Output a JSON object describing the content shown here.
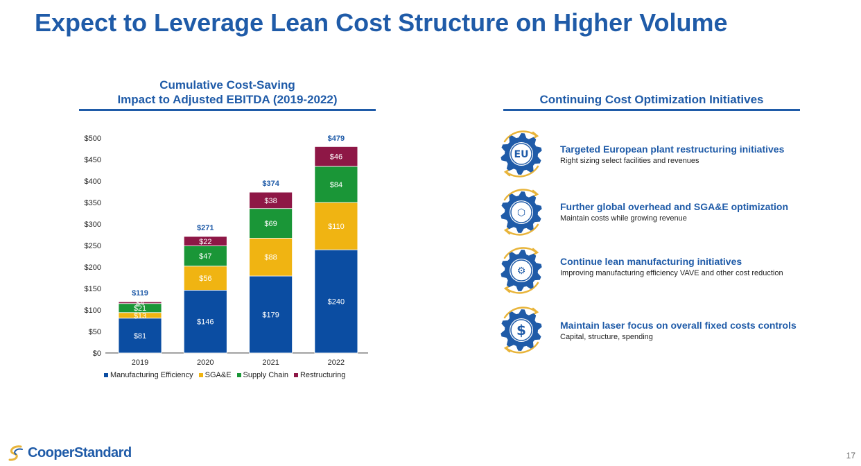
{
  "title": "Expect to Leverage Lean Cost Structure on Higher Volume",
  "colors": {
    "brand_blue": "#1F5BA8",
    "manufacturing": "#0B4DA2",
    "sgae": "#F0B412",
    "supply_chain": "#1A9637",
    "restructuring": "#8E1746",
    "gold_arrow": "#E8B43A"
  },
  "chart_data": {
    "type": "bar",
    "stacked": true,
    "title": "Cumulative Cost-Saving Impact to Adjusted EBITDA (2019-2022)",
    "title_lines": [
      "Cumulative Cost-Saving",
      "Impact to Adjusted EBITDA (2019-2022)"
    ],
    "categories": [
      "2019",
      "2020",
      "2021",
      "2022"
    ],
    "series": [
      {
        "name": "Manufacturing Efficiency",
        "values": [
          81,
          146,
          179,
          240
        ],
        "labels": [
          "$81",
          "$146",
          "$179",
          "$240"
        ]
      },
      {
        "name": "SGA&E",
        "values": [
          13,
          56,
          88,
          110
        ],
        "labels": [
          "$13",
          "$56",
          "$88",
          "$110"
        ]
      },
      {
        "name": "Supply Chain",
        "values": [
          21,
          47,
          69,
          84
        ],
        "labels": [
          "$21",
          "$47",
          "$69",
          "$84"
        ]
      },
      {
        "name": "Restructuring",
        "values": [
          4,
          22,
          38,
          46
        ],
        "labels": [
          "$4",
          "$22",
          "$38",
          "$46"
        ]
      }
    ],
    "totals": [
      119,
      271,
      374,
      479
    ],
    "total_labels": [
      "$119",
      "$271",
      "$374",
      "$479"
    ],
    "yticks": [
      0,
      50,
      100,
      150,
      200,
      250,
      300,
      350,
      400,
      450,
      500
    ],
    "ytick_labels": [
      "$0",
      "$50",
      "$100",
      "$150",
      "$200",
      "$250",
      "$300",
      "$350",
      "$400",
      "$450",
      "$500"
    ],
    "ylim": [
      0,
      500
    ],
    "xlabel": "",
    "ylabel": "",
    "grid": false,
    "legend": "bottom"
  },
  "initiatives": {
    "header": "Continuing Cost Optimization Initiatives",
    "items": [
      {
        "title": "Targeted European plant restructuring initiatives",
        "description": "Right sizing select facilities and revenues",
        "icon": "europe-map-gear-icon",
        "symbol": "EU"
      },
      {
        "title": "Further global overhead and SGA&E optimization",
        "description": "Maintain costs while growing revenue",
        "icon": "cube-gear-icon",
        "symbol": "⬡"
      },
      {
        "title": "Continue lean manufacturing initiatives",
        "description": "Improving manufacturing efficiency VAVE and other cost reduction",
        "icon": "cog-gear-icon",
        "symbol": "⚙"
      },
      {
        "title": "Maintain laser focus on overall fixed costs controls",
        "description": "Capital, structure, spending",
        "icon": "dollar-gear-icon",
        "symbol": "$"
      }
    ]
  },
  "footer": {
    "logo_text": "CooperStandard",
    "page_number": "17"
  }
}
